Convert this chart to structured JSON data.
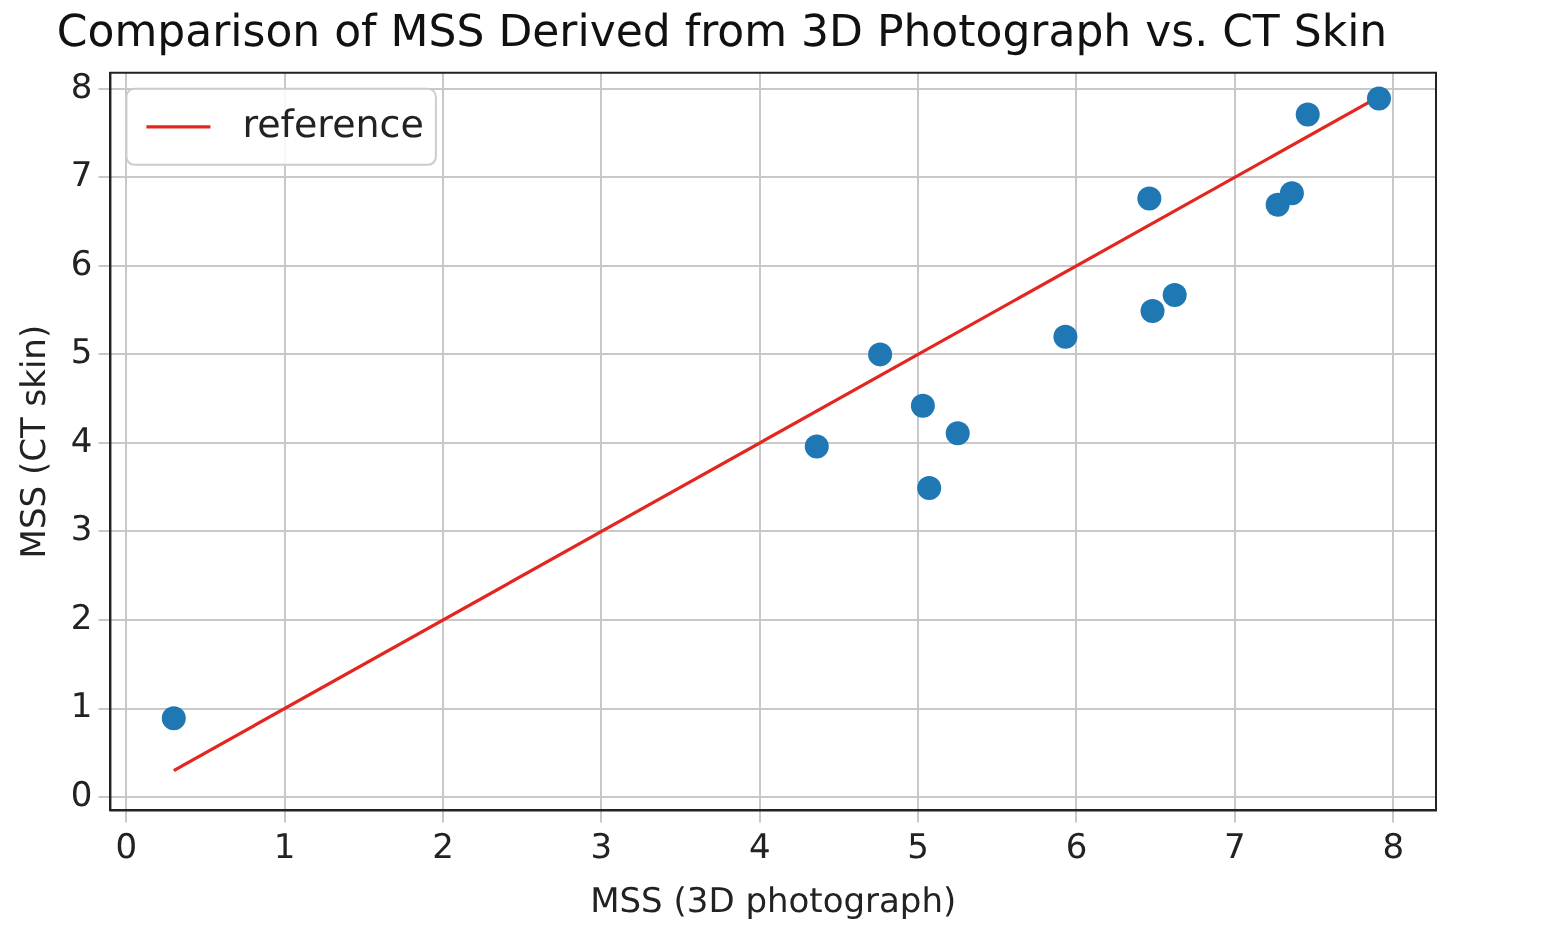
{
  "chart_data": {
    "type": "scatter",
    "title": "Comparison of MSS Derived from 3D Photograph vs. CT Skin",
    "xlabel": "MSS (3D photograph)",
    "ylabel": "MSS (CT skin)",
    "x": [
      0.3,
      4.36,
      4.76,
      5.03,
      5.07,
      5.25,
      5.93,
      6.46,
      6.48,
      6.62,
      7.27,
      7.36,
      7.46,
      7.91
    ],
    "series": [
      {
        "color": "#1f77b4",
        "marker": "circle",
        "values": [
          0.89,
          3.96,
          5.0,
          4.42,
          3.49,
          4.11,
          5.2,
          6.76,
          5.49,
          5.67,
          6.69,
          6.82,
          7.71,
          7.89
        ]
      },
      {
        "type": "line",
        "name": "reference",
        "color": "#e3261f",
        "marker": "none",
        "x": [
          0.3,
          7.91
        ],
        "values": [
          0.3,
          7.91
        ]
      }
    ],
    "xlim": [
      -0.1,
      8.27
    ],
    "ylim": [
      -0.15,
      8.18
    ],
    "xticks": [
      0,
      1,
      2,
      3,
      4,
      5,
      6,
      7,
      8
    ],
    "yticks": [
      0,
      1,
      2,
      3,
      4,
      5,
      6,
      7,
      8
    ],
    "grid": true,
    "legend": "top left"
  }
}
